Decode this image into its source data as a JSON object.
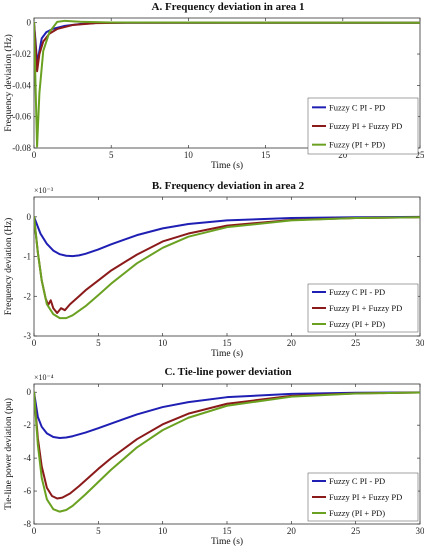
{
  "chart_data": [
    {
      "type": "line",
      "title": "A. Frequency deviation in area 1",
      "xlabel": "Time (s)",
      "ylabel": "Frequency deviation (Hz)",
      "exponent_label": "",
      "xlim": [
        0,
        25
      ],
      "ylim": [
        -0.08,
        0.003
      ],
      "xticks": [
        0,
        5,
        10,
        15,
        20,
        25
      ],
      "yticks": [
        0,
        -0.02,
        -0.04,
        -0.06,
        -0.08
      ],
      "ytick_labels": [
        "0",
        "-0.02",
        "-0.04",
        "-0.06",
        "-0.08"
      ],
      "legend_position": "center-right",
      "series": [
        {
          "name": "Fuzzy C PI - PD",
          "color": "#1f1fb4",
          "points": [
            [
              0,
              0
            ],
            [
              0.1,
              -0.012
            ],
            [
              0.2,
              -0.026
            ],
            [
              0.35,
              -0.018
            ],
            [
              0.5,
              -0.01
            ],
            [
              0.8,
              -0.006
            ],
            [
              1.2,
              -0.004
            ],
            [
              2,
              -0.002
            ],
            [
              3,
              -0.0008
            ],
            [
              4,
              -0.0002
            ],
            [
              6,
              0
            ],
            [
              25,
              0
            ]
          ]
        },
        {
          "name": "Fuzzy PI + Fuzzy PD",
          "color": "#8b1a1a",
          "points": [
            [
              0,
              0
            ],
            [
              0.1,
              -0.015
            ],
            [
              0.2,
              -0.031
            ],
            [
              0.35,
              -0.02
            ],
            [
              0.6,
              -0.012
            ],
            [
              1,
              -0.007
            ],
            [
              1.5,
              -0.004
            ],
            [
              2.5,
              -0.0015
            ],
            [
              4,
              -0.0003
            ],
            [
              6,
              0
            ],
            [
              25,
              0
            ]
          ]
        },
        {
          "name": "Fuzzy (PI + PD)",
          "color": "#6aa121",
          "points": [
            [
              0,
              0
            ],
            [
              0.1,
              -0.04
            ],
            [
              0.2,
              -0.079
            ],
            [
              0.35,
              -0.045
            ],
            [
              0.6,
              -0.018
            ],
            [
              1,
              -0.006
            ],
            [
              1.5,
              0.0005
            ],
            [
              2,
              0.0012
            ],
            [
              3,
              0.0006
            ],
            [
              5,
              0.0001
            ],
            [
              25,
              0
            ]
          ]
        }
      ]
    },
    {
      "type": "line",
      "title": "B. Frequency deviation in area 2",
      "xlabel": "Time (s)",
      "ylabel": "Frequency deviation (Hz)",
      "exponent_label": "×10⁻³",
      "xlim": [
        0,
        30
      ],
      "ylim": [
        -3,
        0.5
      ],
      "xticks": [
        0,
        5,
        10,
        15,
        20,
        25,
        30
      ],
      "yticks": [
        0,
        -1,
        -2,
        -3
      ],
      "ytick_labels": [
        "0",
        "-1",
        "-2",
        "-3"
      ],
      "legend_position": "bottom-right",
      "series": [
        {
          "name": "Fuzzy C PI - PD",
          "color": "#1f1fb4",
          "points": [
            [
              0,
              0
            ],
            [
              0.5,
              -0.42
            ],
            [
              1,
              -0.68
            ],
            [
              1.5,
              -0.85
            ],
            [
              2,
              -0.94
            ],
            [
              2.5,
              -0.98
            ],
            [
              3,
              -0.99
            ],
            [
              3.5,
              -0.97
            ],
            [
              4,
              -0.93
            ],
            [
              5,
              -0.82
            ],
            [
              6,
              -0.69
            ],
            [
              8,
              -0.46
            ],
            [
              10,
              -0.29
            ],
            [
              12,
              -0.18
            ],
            [
              15,
              -0.09
            ],
            [
              20,
              -0.03
            ],
            [
              25,
              -0.01
            ],
            [
              30,
              0
            ]
          ]
        },
        {
          "name": "Fuzzy PI + Fuzzy PD",
          "color": "#8b1a1a",
          "points": [
            [
              0,
              0
            ],
            [
              0.3,
              -0.9
            ],
            [
              0.6,
              -1.6
            ],
            [
              0.9,
              -2.05
            ],
            [
              1.1,
              -2.22
            ],
            [
              1.3,
              -2.1
            ],
            [
              1.5,
              -2.3
            ],
            [
              1.8,
              -2.42
            ],
            [
              2.1,
              -2.3
            ],
            [
              2.4,
              -2.35
            ],
            [
              2.8,
              -2.2
            ],
            [
              3.5,
              -2.0
            ],
            [
              4,
              -1.85
            ],
            [
              5,
              -1.6
            ],
            [
              6,
              -1.35
            ],
            [
              8,
              -0.95
            ],
            [
              10,
              -0.62
            ],
            [
              12,
              -0.42
            ],
            [
              15,
              -0.22
            ],
            [
              20,
              -0.08
            ],
            [
              25,
              -0.03
            ],
            [
              30,
              -0.01
            ]
          ]
        },
        {
          "name": "Fuzzy (PI + PD)",
          "color": "#6aa121",
          "points": [
            [
              0,
              0
            ],
            [
              0.3,
              -0.9
            ],
            [
              0.6,
              -1.6
            ],
            [
              1,
              -2.2
            ],
            [
              1.5,
              -2.45
            ],
            [
              2,
              -2.55
            ],
            [
              2.5,
              -2.55
            ],
            [
              3,
              -2.48
            ],
            [
              4,
              -2.25
            ],
            [
              5,
              -1.97
            ],
            [
              6,
              -1.68
            ],
            [
              8,
              -1.17
            ],
            [
              10,
              -0.78
            ],
            [
              12,
              -0.5
            ],
            [
              15,
              -0.26
            ],
            [
              20,
              -0.09
            ],
            [
              25,
              -0.03
            ],
            [
              30,
              -0.01
            ]
          ]
        }
      ]
    },
    {
      "type": "line",
      "title": "C. Tie-line power deviation",
      "xlabel": "Time (s)",
      "ylabel": "Tie-line power deviation (pu)",
      "exponent_label": "×10⁻⁴",
      "xlim": [
        0,
        30
      ],
      "ylim": [
        -8,
        0.5
      ],
      "xticks": [
        0,
        5,
        10,
        15,
        20,
        25,
        30
      ],
      "yticks": [
        0,
        -2,
        -4,
        -6,
        -8
      ],
      "ytick_labels": [
        "0",
        "-2",
        "-4",
        "-6",
        "-8"
      ],
      "legend_position": "bottom-right",
      "series": [
        {
          "name": "Fuzzy C PI - PD",
          "color": "#1f1fb4",
          "points": [
            [
              0,
              0
            ],
            [
              0.3,
              -1.5
            ],
            [
              0.6,
              -2.1
            ],
            [
              1,
              -2.5
            ],
            [
              1.5,
              -2.72
            ],
            [
              2,
              -2.78
            ],
            [
              2.5,
              -2.75
            ],
            [
              3,
              -2.67
            ],
            [
              4,
              -2.45
            ],
            [
              5,
              -2.18
            ],
            [
              6,
              -1.9
            ],
            [
              8,
              -1.35
            ],
            [
              10,
              -0.9
            ],
            [
              12,
              -0.6
            ],
            [
              15,
              -0.3
            ],
            [
              20,
              -0.1
            ],
            [
              25,
              -0.03
            ],
            [
              30,
              -0.01
            ]
          ]
        },
        {
          "name": "Fuzzy PI + Fuzzy PD",
          "color": "#8b1a1a",
          "points": [
            [
              0,
              0
            ],
            [
              0.3,
              -2.8
            ],
            [
              0.6,
              -4.5
            ],
            [
              1,
              -5.8
            ],
            [
              1.4,
              -6.3
            ],
            [
              1.8,
              -6.45
            ],
            [
              2.2,
              -6.4
            ],
            [
              2.8,
              -6.15
            ],
            [
              3.5,
              -5.7
            ],
            [
              4,
              -5.35
            ],
            [
              5,
              -4.65
            ],
            [
              6,
              -4.0
            ],
            [
              8,
              -2.85
            ],
            [
              10,
              -1.95
            ],
            [
              12,
              -1.3
            ],
            [
              15,
              -0.7
            ],
            [
              20,
              -0.22
            ],
            [
              25,
              -0.07
            ],
            [
              30,
              -0.02
            ]
          ]
        },
        {
          "name": "Fuzzy (PI + PD)",
          "color": "#6aa121",
          "points": [
            [
              0,
              0
            ],
            [
              0.3,
              -3.2
            ],
            [
              0.6,
              -5.2
            ],
            [
              1,
              -6.5
            ],
            [
              1.5,
              -7.1
            ],
            [
              2,
              -7.25
            ],
            [
              2.5,
              -7.15
            ],
            [
              3,
              -6.9
            ],
            [
              4,
              -6.2
            ],
            [
              5,
              -5.45
            ],
            [
              6,
              -4.7
            ],
            [
              8,
              -3.35
            ],
            [
              10,
              -2.3
            ],
            [
              12,
              -1.55
            ],
            [
              15,
              -0.82
            ],
            [
              20,
              -0.27
            ],
            [
              25,
              -0.08
            ],
            [
              30,
              -0.02
            ]
          ]
        }
      ]
    }
  ]
}
